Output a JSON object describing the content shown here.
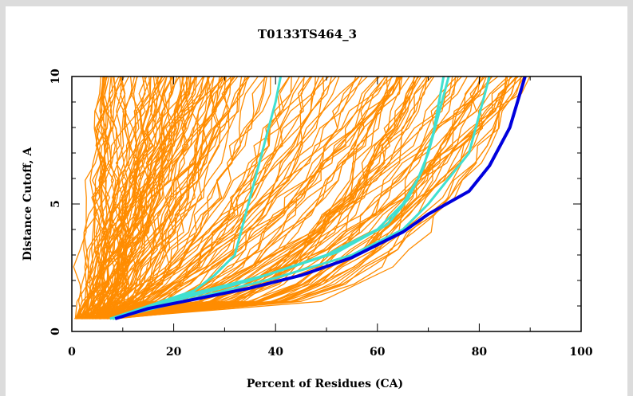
{
  "chart_data": {
    "type": "line",
    "title": "T0133TS464_3",
    "xlabel": "Percent of Residues (CA)",
    "ylabel": "Distance Cutoff, A",
    "xlim": [
      0,
      100
    ],
    "ylim": [
      0,
      10
    ],
    "x_ticks": [
      "0",
      "20",
      "40",
      "60",
      "80",
      "100"
    ],
    "y_ticks": [
      "0",
      "5",
      "10"
    ],
    "grid": false,
    "legend": "none",
    "colors": {
      "other_models": "#ff8c00",
      "related_models": "#40e0d0",
      "highlighted_model": "#0000dd",
      "background": "#dcdcdc",
      "plot_area": "#ffffff"
    },
    "series": [
      {
        "role": "highlighted_model",
        "color": "#0000dd",
        "x": [
          8.5,
          15,
          25,
          35,
          45,
          55,
          65,
          70,
          78,
          82,
          86,
          89
        ],
        "y": [
          0.5,
          0.9,
          1.3,
          1.7,
          2.2,
          2.9,
          3.9,
          4.6,
          5.5,
          6.5,
          8.0,
          10.0
        ]
      },
      {
        "role": "related_model",
        "color": "#40e0d0",
        "x": [
          7.5,
          15,
          24,
          28,
          32,
          34,
          36,
          38,
          40,
          41
        ],
        "y": [
          0.5,
          1.0,
          1.6,
          2.2,
          3.0,
          4.5,
          6.0,
          7.5,
          9.0,
          10.0
        ]
      },
      {
        "role": "related_model",
        "color": "#40e0d0",
        "x": [
          8,
          20,
          35,
          50,
          60,
          65,
          68,
          70,
          72,
          74
        ],
        "y": [
          0.5,
          1.2,
          2.0,
          3.0,
          4.0,
          5.0,
          6.0,
          7.0,
          8.5,
          10.0
        ]
      },
      {
        "role": "related_model",
        "color": "#40e0d0",
        "x": [
          8,
          20,
          40,
          55,
          65,
          70,
          74,
          78,
          80,
          82
        ],
        "y": [
          0.5,
          1.1,
          2.1,
          3.0,
          4.0,
          5.0,
          6.0,
          7.0,
          8.5,
          10.0
        ]
      },
      {
        "role": "related_model",
        "color": "#40e0d0",
        "x": [
          8,
          20,
          38,
          52,
          62,
          66,
          69,
          71,
          73
        ],
        "y": [
          0.5,
          1.3,
          2.2,
          3.1,
          4.2,
          5.2,
          6.4,
          7.8,
          10.0
        ]
      }
    ],
    "other_models_count": 180
  }
}
